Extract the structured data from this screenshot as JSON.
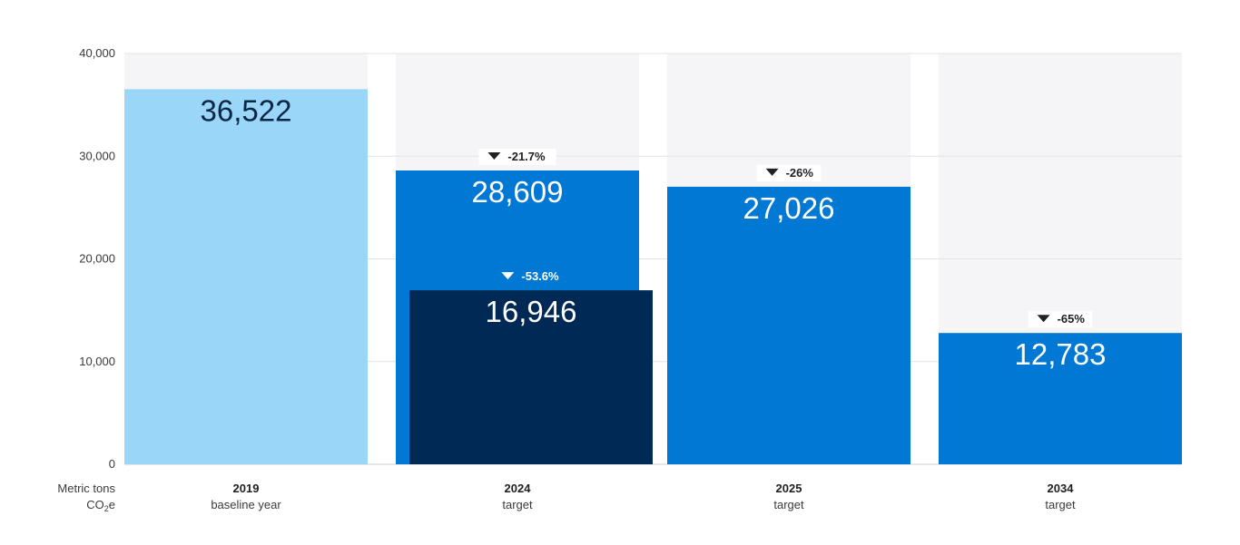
{
  "colors": {
    "background_band": "#f5f5f7",
    "gridline": "#e3e3e6",
    "baseline_bar": "#99d6f8",
    "target_bar": "#0078d4",
    "actual_bar": "#002a55",
    "value_dark": "#0b2545",
    "value_light": "#ffffff",
    "label_dark": "#1f1f1f"
  },
  "chart_data": {
    "type": "bar",
    "ylabel_line1": "Metric tons",
    "ylabel_line2_main": "CO",
    "ylabel_line2_sub": "2",
    "ylabel_line2_end": "e",
    "ylim": [
      0,
      40000
    ],
    "yticks": [
      0,
      10000,
      20000,
      30000,
      40000
    ],
    "ytick_labels": [
      "0",
      "10,000",
      "20,000",
      "30,000",
      "40,000"
    ],
    "grid": true,
    "categories": [
      {
        "year": "2019",
        "sub": "baseline year"
      },
      {
        "year": "2024",
        "sub": "target"
      },
      {
        "year": "2025",
        "sub": "target"
      },
      {
        "year": "2034",
        "sub": "target"
      }
    ],
    "bars": [
      {
        "category": 0,
        "value": 36522,
        "label": "36,522",
        "change": "",
        "style": "baseline"
      },
      {
        "category": 1,
        "value": 28609,
        "label": "28,609",
        "change": "-21.7%",
        "style": "target"
      },
      {
        "category": 1,
        "value": 16946,
        "label": "16,946",
        "change": "-53.6%",
        "style": "actual",
        "overlay": true
      },
      {
        "category": 2,
        "value": 27026,
        "label": "27,026",
        "change": "-26%",
        "style": "target"
      },
      {
        "category": 3,
        "value": 12783,
        "label": "12,783",
        "change": "-65%",
        "style": "target"
      }
    ]
  }
}
